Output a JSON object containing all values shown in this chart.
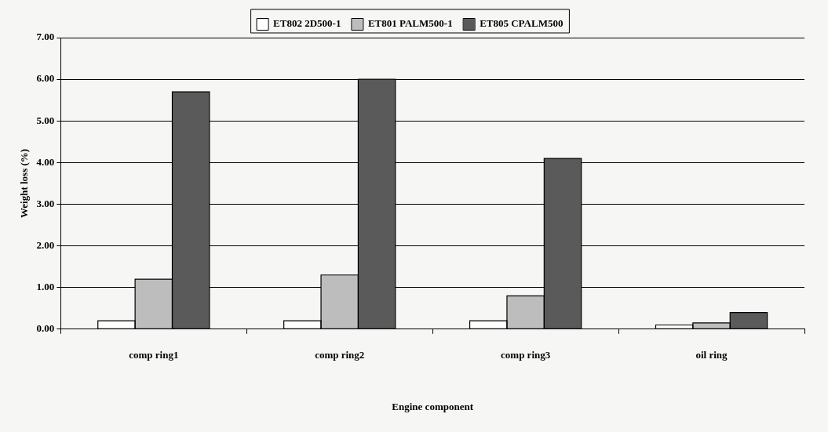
{
  "chart_data": {
    "type": "bar",
    "xlabel": "Engine component",
    "ylabel": "Weight loss (%)",
    "categories": [
      "comp ring1",
      "comp ring2",
      "comp ring3",
      "oil ring"
    ],
    "series": [
      {
        "name": "ET802 2D500-1",
        "color": "#ffffff",
        "values": [
          0.2,
          0.2,
          0.2,
          0.1
        ]
      },
      {
        "name": "ET801 PALM500-1",
        "color": "#bdbdbd",
        "values": [
          1.2,
          1.3,
          0.8,
          0.15
        ]
      },
      {
        "name": "ET805 CPALM500",
        "color": "#5a5a5a",
        "values": [
          5.7,
          6.0,
          4.1,
          0.4
        ]
      }
    ],
    "ylim": [
      0,
      7
    ],
    "yticks": [
      {
        "value": 0,
        "label": "0.00"
      },
      {
        "value": 1,
        "label": "1.00"
      },
      {
        "value": 2,
        "label": "2.00"
      },
      {
        "value": 3,
        "label": "3.00"
      },
      {
        "value": 4,
        "label": "4.00"
      },
      {
        "value": 5,
        "label": "5.00"
      },
      {
        "value": 6,
        "label": "6.00"
      },
      {
        "value": 7,
        "label": "7.00"
      }
    ],
    "grid": "y",
    "legend": "top"
  }
}
